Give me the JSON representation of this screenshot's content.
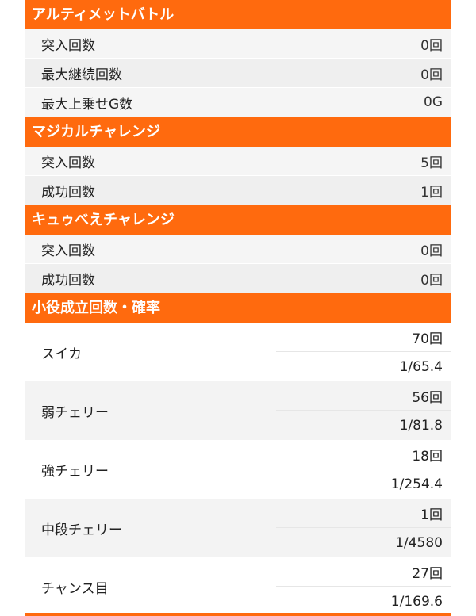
{
  "sections": [
    {
      "title": "アルティメットバトル",
      "rows": [
        {
          "label": "突入回数",
          "value": "0回"
        },
        {
          "label": "最大継続回数",
          "value": "0回"
        },
        {
          "label": "最大上乗せG数",
          "value": "0G"
        }
      ]
    },
    {
      "title": "マジカルチャレンジ",
      "rows": [
        {
          "label": "突入回数",
          "value": "5回"
        },
        {
          "label": "成功回数",
          "value": "1回"
        }
      ]
    },
    {
      "title": "キュゥべえチャレンジ",
      "rows": [
        {
          "label": "突入回数",
          "value": "0回"
        },
        {
          "label": "成功回数",
          "value": "0回"
        }
      ]
    }
  ],
  "koyaku": {
    "title": "小役成立回数・確率",
    "items": [
      {
        "label": "スイカ",
        "count": "70回",
        "prob": "1/65.4"
      },
      {
        "label": "弱チェリー",
        "count": "56回",
        "prob": "1/81.8"
      },
      {
        "label": "強チェリー",
        "count": "18回",
        "prob": "1/254.4"
      },
      {
        "label": "中段チェリー",
        "count": "1回",
        "prob": "1/4580"
      },
      {
        "label": "チャンス目",
        "count": "27回",
        "prob": "1/169.6"
      }
    ]
  },
  "colors": {
    "header": "#ff6a0e",
    "row_light": "#f5f5f5",
    "row_dark": "#efefef"
  }
}
